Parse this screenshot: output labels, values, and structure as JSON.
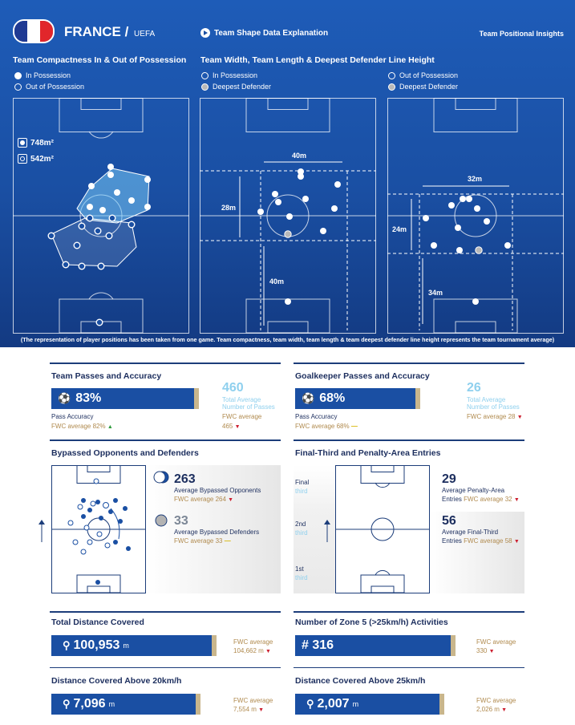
{
  "header": {
    "country": "FRANCE",
    "separator": "/",
    "confederation": "UEFA",
    "data_link": "Team Shape Data Explanation",
    "right_title": "Team Positional Insights",
    "flag_colors": [
      "#1f3a93",
      "#ffffff",
      "#e1262b"
    ]
  },
  "compactness": {
    "title": "Team Compactness In & Out of Possession",
    "legend_in": "In Possession",
    "legend_out": "Out of Possession",
    "in_area": "748m²",
    "out_area": "542m²"
  },
  "width_length": {
    "title": "Team Width, Team Length & Deepest  Defender Line Height",
    "legend_in": "In Possession",
    "legend_deepest": "Deepest Defender",
    "legend_out": "Out of Possession",
    "legend_deepest2": "Deepest Defender",
    "in_width": "40m",
    "in_length": "28m",
    "in_line_height": "40m",
    "out_width": "32m",
    "out_length": "24m",
    "out_line_height": "34m"
  },
  "footnote": "(The representation of player positions has been taken from one game. Team compactness, team width, team length & team deepest defender line height represents the team tournament average)",
  "passes": {
    "title": "Team Passes and Accuracy",
    "accuracy": "83%",
    "accuracy_label": "Pass Accuracy",
    "fwc_label": "FWC average 82%",
    "total": "460",
    "total_label_1": "Total Average",
    "total_label_2": "Number of Passes",
    "total_fwc_label": "FWC average",
    "total_fwc_value": "465"
  },
  "gk_passes": {
    "title": "Goalkeeper Passes and Accuracy",
    "accuracy": "68%",
    "accuracy_label": "Pass Accuracy",
    "fwc_label": "FWC average 68%",
    "total": "26",
    "total_label_1": "Total Average",
    "total_label_2": "Number of Passes",
    "total_fwc_label": "FWC average 28"
  },
  "bypassed": {
    "title": "Bypassed Opponents and Defenders",
    "opponents": "263",
    "opponents_label": "Average Bypassed Opponents",
    "opponents_fwc": "FWC average 264",
    "defenders": "33",
    "defenders_label": "Average Bypassed Defenders",
    "defenders_fwc": "FWC average 33"
  },
  "entries": {
    "title": "Final-Third and Penalty-Area Entries",
    "zone_final": "Final",
    "zone_2nd": "2nd",
    "zone_1st": "1st",
    "zone_word": "third",
    "penalty": "29",
    "penalty_label_1": "Average Penalty-Area",
    "penalty_label_2": "Entries",
    "penalty_fwc": "FWC average 32",
    "final": "56",
    "final_label_1": "Average Final-Third",
    "final_label_2": "Entries",
    "final_fwc": "FWC average 58"
  },
  "distance": {
    "title": "Total Distance Covered",
    "value": "100,953",
    "unit": "m",
    "fwc_label": "FWC average",
    "fwc_value": "104,662 m"
  },
  "zone5": {
    "title": "Number of Zone 5 (>25km/h) Activities",
    "value": "# 316",
    "fwc_label": "FWC average",
    "fwc_value": "330"
  },
  "dist20": {
    "title": "Distance Covered Above 20km/h",
    "value": "7,096",
    "unit": "m",
    "fwc_label": "FWC average",
    "fwc_value": "7,554 m"
  },
  "dist25": {
    "title": "Distance Covered Above 25km/h",
    "value": "2,007",
    "unit": "m",
    "fwc_label": "FWC average",
    "fwc_value": "2,026 m"
  }
}
